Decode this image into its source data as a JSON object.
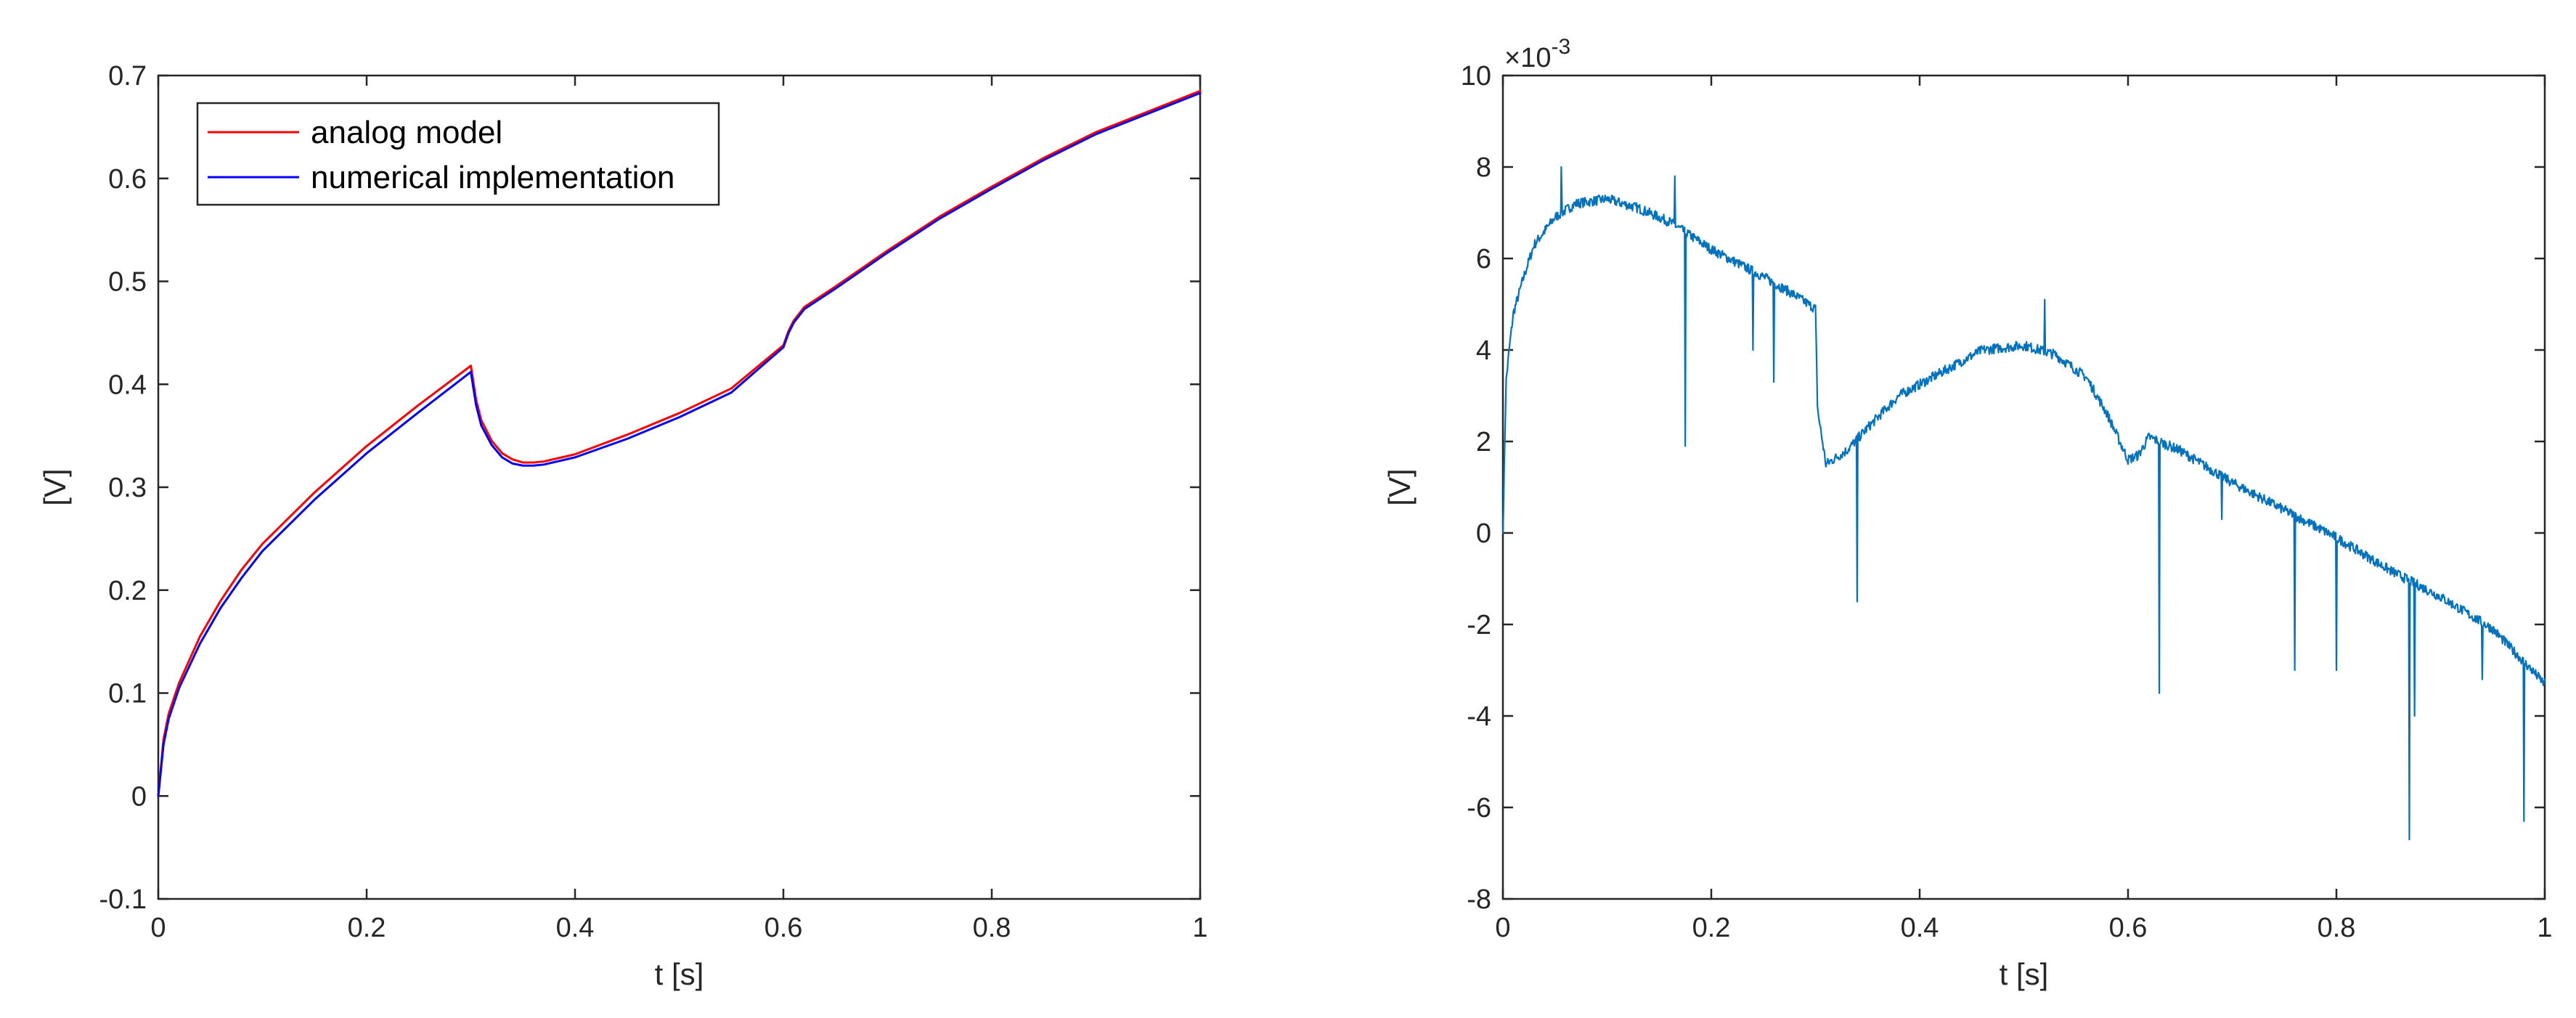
{
  "chart_data": [
    {
      "type": "line",
      "title": "",
      "xlabel": "t [s]",
      "ylabel": "[V]",
      "xlim": [
        0,
        1
      ],
      "ylim": [
        -0.1,
        0.7
      ],
      "xticks": [
        0,
        0.2,
        0.4,
        0.6,
        0.8,
        1
      ],
      "xtick_labels": [
        "0",
        "0.2",
        "0.4",
        "0.6",
        "0.8",
        "1"
      ],
      "yticks": [
        -0.1,
        0,
        0.1,
        0.2,
        0.3,
        0.4,
        0.5,
        0.6,
        0.7
      ],
      "ytick_labels": [
        "-0.1",
        "0",
        "0.1",
        "0.2",
        "0.3",
        "0.4",
        "0.5",
        "0.6",
        "0.7"
      ],
      "grid": false,
      "legend": "top-left",
      "series": [
        {
          "name": "analog model",
          "color": "#ff0000",
          "x": [
            0,
            0.005,
            0.01,
            0.02,
            0.04,
            0.06,
            0.08,
            0.1,
            0.15,
            0.2,
            0.25,
            0.3,
            0.305,
            0.31,
            0.32,
            0.33,
            0.34,
            0.35,
            0.36,
            0.37,
            0.4,
            0.45,
            0.5,
            0.55,
            0.6,
            0.605,
            0.61,
            0.62,
            0.65,
            0.7,
            0.75,
            0.8,
            0.85,
            0.9,
            0.95,
            1.0
          ],
          "y": [
            0,
            0.055,
            0.08,
            0.11,
            0.155,
            0.19,
            0.22,
            0.245,
            0.295,
            0.34,
            0.38,
            0.418,
            0.385,
            0.365,
            0.345,
            0.333,
            0.327,
            0.324,
            0.324,
            0.325,
            0.332,
            0.351,
            0.372,
            0.396,
            0.438,
            0.452,
            0.462,
            0.475,
            0.495,
            0.53,
            0.563,
            0.592,
            0.62,
            0.645,
            0.665,
            0.685
          ]
        },
        {
          "name": "numerical implementation",
          "color": "#0000ff",
          "x": [
            0,
            0.005,
            0.01,
            0.02,
            0.04,
            0.06,
            0.08,
            0.1,
            0.15,
            0.2,
            0.25,
            0.3,
            0.305,
            0.31,
            0.32,
            0.33,
            0.34,
            0.35,
            0.36,
            0.37,
            0.4,
            0.45,
            0.5,
            0.55,
            0.6,
            0.605,
            0.61,
            0.62,
            0.65,
            0.7,
            0.75,
            0.8,
            0.85,
            0.9,
            0.95,
            1.0
          ],
          "y": [
            0,
            0.05,
            0.075,
            0.105,
            0.148,
            0.183,
            0.212,
            0.238,
            0.288,
            0.333,
            0.373,
            0.412,
            0.38,
            0.36,
            0.341,
            0.329,
            0.323,
            0.321,
            0.321,
            0.322,
            0.329,
            0.347,
            0.368,
            0.392,
            0.436,
            0.45,
            0.46,
            0.473,
            0.493,
            0.528,
            0.561,
            0.59,
            0.618,
            0.643,
            0.663,
            0.683
          ]
        }
      ]
    },
    {
      "type": "line",
      "title": "",
      "xlabel": "t [s]",
      "ylabel": "[V]",
      "xlim": [
        0,
        1
      ],
      "ylim": [
        -0.008,
        0.01
      ],
      "xticks": [
        0,
        0.2,
        0.4,
        0.6,
        0.8,
        1
      ],
      "xtick_labels": [
        "0",
        "0.2",
        "0.4",
        "0.6",
        "0.8",
        "1"
      ],
      "yticks": [
        -0.008,
        -0.006,
        -0.004,
        -0.002,
        0,
        0.002,
        0.004,
        0.006,
        0.008,
        0.01
      ],
      "ytick_labels": [
        "-8",
        "-6",
        "-4",
        "-2",
        "0",
        "2",
        "4",
        "6",
        "8",
        "10"
      ],
      "exponent_label_base": "×10",
      "exponent_label_power": "-3",
      "grid": false,
      "series": [
        {
          "color": "#0072bd",
          "envelope_x": [
            0,
            0.003,
            0.006,
            0.01,
            0.02,
            0.03,
            0.05,
            0.07,
            0.1,
            0.13,
            0.16,
            0.2,
            0.25,
            0.28,
            0.3,
            0.302,
            0.31,
            0.33,
            0.35,
            0.38,
            0.42,
            0.46,
            0.5,
            0.53,
            0.56,
            0.58,
            0.6,
            0.61,
            0.62,
            0.65,
            0.7,
            0.75,
            0.8,
            0.85,
            0.9,
            0.95,
            1.0
          ],
          "envelope_y": [
            0,
            0.0033,
            0.004,
            0.0048,
            0.0056,
            0.0063,
            0.0069,
            0.0072,
            0.0073,
            0.0071,
            0.0068,
            0.0062,
            0.0056,
            0.0052,
            0.0049,
            0.0027,
            0.0015,
            0.0018,
            0.0023,
            0.003,
            0.0035,
            0.004,
            0.0041,
            0.0039,
            0.0034,
            0.0026,
            0.0016,
            0.0017,
            0.0021,
            0.0018,
            0.0011,
            0.0005,
            -0.0001,
            -0.0008,
            -0.0014,
            -0.0021,
            -0.0033
          ],
          "spikes": [
            {
              "x": 0.056,
              "y": 0.008
            },
            {
              "x": 0.165,
              "y": 0.0078
            },
            {
              "x": 0.175,
              "y": 0.0019
            },
            {
              "x": 0.24,
              "y": 0.004
            },
            {
              "x": 0.26,
              "y": 0.0033
            },
            {
              "x": 0.34,
              "y": -0.0015
            },
            {
              "x": 0.52,
              "y": 0.0051
            },
            {
              "x": 0.63,
              "y": -0.0035
            },
            {
              "x": 0.69,
              "y": 0.0003
            },
            {
              "x": 0.76,
              "y": -0.003
            },
            {
              "x": 0.8,
              "y": -0.003
            },
            {
              "x": 0.87,
              "y": -0.0067
            },
            {
              "x": 0.875,
              "y": -0.004
            },
            {
              "x": 0.94,
              "y": -0.0032
            },
            {
              "x": 0.98,
              "y": -0.0063
            }
          ]
        }
      ]
    }
  ]
}
